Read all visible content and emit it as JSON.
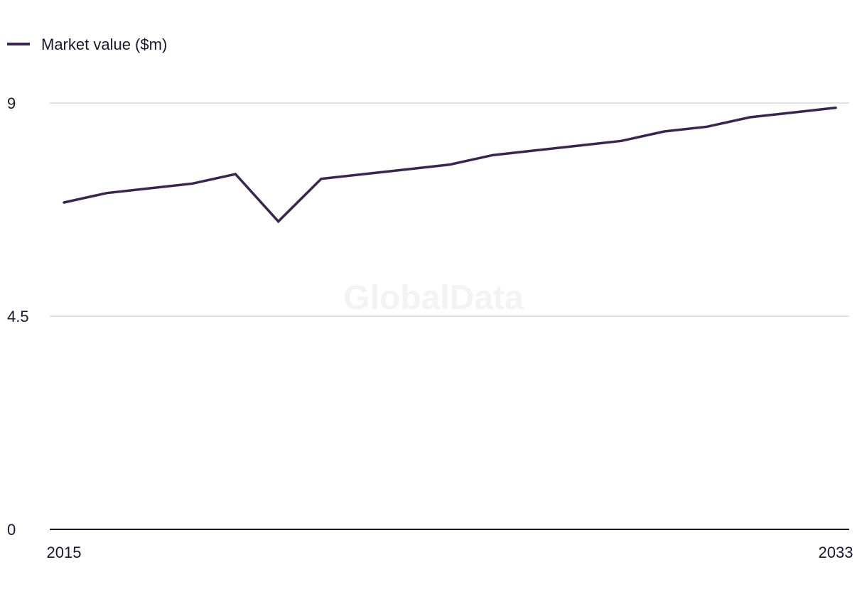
{
  "chart_data": {
    "type": "line",
    "title": "",
    "xlabel": "",
    "ylabel": "",
    "x": [
      2015,
      2016,
      2017,
      2018,
      2019,
      2020,
      2021,
      2022,
      2023,
      2024,
      2025,
      2026,
      2027,
      2028,
      2029,
      2030,
      2031,
      2032,
      2033
    ],
    "series": [
      {
        "name": "Market value ($m)",
        "color": "#3a2552",
        "values": [
          6.9,
          7.1,
          7.2,
          7.3,
          7.5,
          6.5,
          7.4,
          7.5,
          7.6,
          7.7,
          7.9,
          8.0,
          8.1,
          8.2,
          8.4,
          8.5,
          8.7,
          8.8,
          8.9
        ]
      }
    ],
    "ylim": [
      0,
      9
    ],
    "y_ticks": [
      "0",
      "4.5",
      "9"
    ],
    "x_tick_labels": [
      "2015",
      "2033"
    ],
    "grid": true,
    "legend": "top-left",
    "watermark": "GlobalData"
  }
}
